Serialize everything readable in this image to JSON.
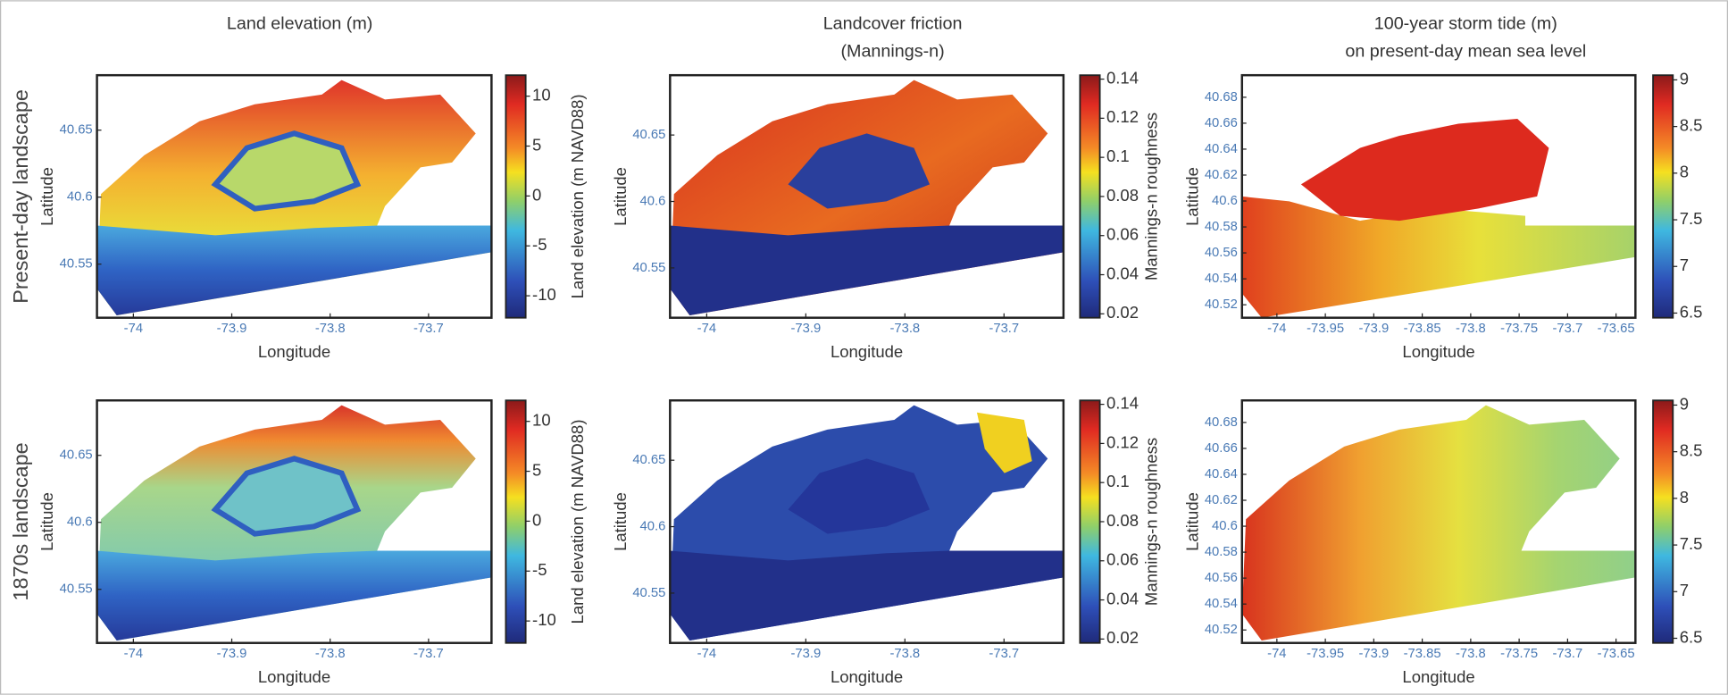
{
  "columns": [
    {
      "title": [
        "Land elevation (m)"
      ]
    },
    {
      "title": [
        "Landcover friction",
        "(Mannings-n)"
      ]
    },
    {
      "title": [
        "100-year storm tide (m)",
        "on present-day mean sea level"
      ]
    }
  ],
  "rows": [
    {
      "label": "Present-day landscape"
    },
    {
      "label": "1870s landscape"
    }
  ],
  "panels": [
    {
      "x_label": "Longitude",
      "y_label": "Latitude",
      "xlim": [
        -74.037,
        -73.636
      ],
      "ylim": [
        40.51,
        40.691
      ],
      "xticks": [
        -74,
        -73.9,
        -73.8,
        -73.7
      ],
      "yticks": [
        40.55,
        40.6,
        40.65
      ],
      "colorbar": {
        "label": "Land elevation (m NAVD88)",
        "lim": [
          -12.2,
          12.1
        ],
        "ticks": [
          -10,
          -5,
          0,
          5,
          10
        ]
      }
    },
    {
      "x_label": "Longitude",
      "y_label": "Latitude",
      "xlim": [
        -74.037,
        -73.64
      ],
      "ylim": [
        40.5125,
        40.695
      ],
      "xticks": [
        -74,
        -73.9,
        -73.8,
        -73.7
      ],
      "yticks": [
        40.55,
        40.6,
        40.65
      ],
      "colorbar": {
        "label": "Mannings-n roughness",
        "lim": [
          0.018,
          0.142
        ],
        "ticks": [
          0.02,
          0.04,
          0.06,
          0.08,
          0.1,
          0.12,
          0.14
        ]
      }
    },
    {
      "x_label": "Longitude",
      "y_label": "Latitude",
      "xlim": [
        -74.036,
        -73.63
      ],
      "ylim": [
        40.51,
        40.697
      ],
      "xticks": [
        -74,
        -73.95,
        -73.9,
        -73.85,
        -73.8,
        -73.75,
        -73.7,
        -73.65
      ],
      "yticks": [
        40.52,
        40.54,
        40.56,
        40.58,
        40.6,
        40.62,
        40.64,
        40.66,
        40.68
      ],
      "colorbar": {
        "lim": [
          6.45,
          9.05
        ],
        "ticks": [
          6.5,
          7,
          7.5,
          8,
          8.5,
          9
        ]
      }
    },
    {
      "x_label": "Longitude",
      "y_label": "Latitude",
      "xlim": [
        -74.037,
        -73.636
      ],
      "ylim": [
        40.51,
        40.691
      ],
      "xticks": [
        -74,
        -73.9,
        -73.8,
        -73.7
      ],
      "yticks": [
        40.55,
        40.6,
        40.65
      ],
      "colorbar": {
        "label": "Land elevation (m NAVD88)",
        "lim": [
          -12.2,
          12.1
        ],
        "ticks": [
          -10,
          -5,
          0,
          5,
          10
        ]
      }
    },
    {
      "x_label": "Longitude",
      "y_label": "Latitude",
      "xlim": [
        -74.037,
        -73.64
      ],
      "ylim": [
        40.5125,
        40.695
      ],
      "xticks": [
        -74,
        -73.9,
        -73.8,
        -73.7
      ],
      "yticks": [
        40.55,
        40.6,
        40.65
      ],
      "colorbar": {
        "label": "Mannings-n roughness",
        "lim": [
          0.018,
          0.142
        ],
        "ticks": [
          0.02,
          0.04,
          0.06,
          0.08,
          0.1,
          0.12,
          0.14
        ]
      }
    },
    {
      "x_label": "Longitude",
      "y_label": "Latitude",
      "xlim": [
        -74.036,
        -73.63
      ],
      "ylim": [
        40.51,
        40.697
      ],
      "xticks": [
        -74,
        -73.95,
        -73.9,
        -73.85,
        -73.8,
        -73.75,
        -73.7,
        -73.65
      ],
      "yticks": [
        40.52,
        40.54,
        40.56,
        40.58,
        40.6,
        40.62,
        40.64,
        40.66,
        40.68
      ],
      "colorbar": {
        "lim": [
          6.45,
          9.05
        ],
        "ticks": [
          6.5,
          7,
          7.5,
          8,
          8.5,
          9
        ]
      }
    }
  ]
}
